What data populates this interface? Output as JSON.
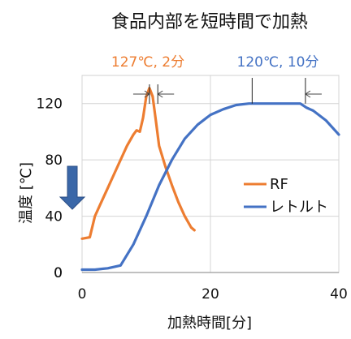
{
  "chart_data": {
    "type": "line",
    "title": "食品内部を短時間で加熱",
    "xlabel": "加熱時間[分]",
    "ylabel": "温度 [℃]",
    "xlim": [
      0,
      40
    ],
    "ylim": [
      0,
      140
    ],
    "xticks": [
      0,
      20,
      40
    ],
    "yticks": [
      0,
      40,
      80,
      120
    ],
    "grid": true,
    "legend_position": "right-middle",
    "series": [
      {
        "name": "RF",
        "color": "#ED7D31",
        "x": [
          0,
          1.2,
          2,
          3,
          4,
          5,
          6,
          7,
          8,
          8.5,
          9,
          9.5,
          10,
          10.5,
          11,
          11.5,
          12,
          13,
          14,
          15,
          16,
          17,
          17.5
        ],
        "y": [
          24,
          25,
          40,
          50,
          60,
          70,
          80,
          90,
          98,
          101,
          100,
          110,
          125,
          131,
          125,
          108,
          90,
          75,
          62,
          50,
          40,
          32,
          30
        ]
      },
      {
        "name": "レトルト",
        "color": "#4472C4",
        "x": [
          0,
          2,
          4,
          6,
          8,
          10,
          12,
          14,
          16,
          18,
          20,
          22,
          24,
          26,
          28,
          30,
          32,
          34,
          35,
          36,
          38,
          40
        ],
        "y": [
          2,
          2,
          3,
          5,
          20,
          40,
          62,
          80,
          95,
          105,
          112,
          116,
          119,
          120,
          120,
          120,
          120,
          120,
          117,
          115,
          108,
          98
        ]
      }
    ],
    "annotations": [
      {
        "text": "127℃, 2分",
        "color": "#ED7D31"
      },
      {
        "text": "120℃, 10分",
        "color": "#4472C4"
      }
    ],
    "arrow_color": "#3A67A8"
  }
}
